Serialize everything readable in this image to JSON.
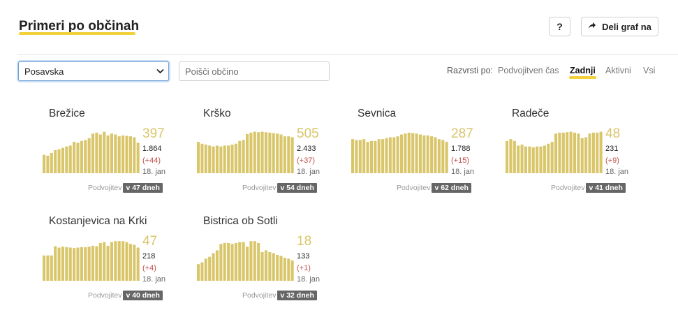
{
  "header": {
    "title": "Primeri po občinah",
    "help_label": "?",
    "share_label": "Deli graf na"
  },
  "filters": {
    "region_selected": "Posavska",
    "search_placeholder": "Poišči občino"
  },
  "sort": {
    "label": "Razvrsti po:",
    "options": [
      "Podvojitven čas",
      "Zadnji",
      "Aktivni",
      "Vsi"
    ],
    "active": "Zadnji"
  },
  "colors": {
    "bar": "#d9c66a",
    "accent_underline": "#f2d23c",
    "delta": "#c0504d",
    "badge": "#666666"
  },
  "municipalities": [
    {
      "name": "Brežice",
      "active": "397",
      "total": "1.864",
      "delta": "(+44)",
      "date": "18. jan",
      "doubling_label": "Podvojitev",
      "doubling_value": "v 47 dneh",
      "bars": [
        40,
        38,
        44,
        50,
        52,
        55,
        58,
        60,
        68,
        66,
        70,
        72,
        76,
        86,
        88,
        84,
        90,
        82,
        86,
        84,
        80,
        82,
        81,
        80,
        78,
        66
      ]
    },
    {
      "name": "Krško",
      "active": "505",
      "total": "2.433",
      "delta": "(+37)",
      "date": "18. jan",
      "doubling_label": "Podvojitev",
      "doubling_value": "v 54 dneh",
      "bars": [
        68,
        64,
        62,
        60,
        58,
        60,
        58,
        60,
        60,
        62,
        64,
        70,
        72,
        85,
        88,
        90,
        89,
        90,
        89,
        88,
        87,
        86,
        84,
        80,
        80,
        78
      ]
    },
    {
      "name": "Sevnica",
      "active": "287",
      "total": "1.788",
      "delta": "(+15)",
      "date": "18. jan",
      "doubling_label": "Podvojitev",
      "doubling_value": "v 62 dneh",
      "bars": [
        74,
        72,
        72,
        74,
        68,
        70,
        70,
        74,
        74,
        76,
        78,
        78,
        80,
        84,
        86,
        88,
        87,
        86,
        84,
        82,
        82,
        80,
        78,
        74,
        72,
        68
      ]
    },
    {
      "name": "Radeče",
      "active": "48",
      "total": "231",
      "delta": "(+9)",
      "date": "18. jan",
      "doubling_label": "Podvojitev",
      "doubling_value": "v 41 dneh",
      "bars": [
        70,
        74,
        70,
        60,
        62,
        58,
        58,
        56,
        58,
        58,
        60,
        64,
        68,
        86,
        88,
        88,
        89,
        90,
        88,
        86,
        76,
        78,
        86,
        88,
        88,
        90
      ]
    },
    {
      "name": "Kostanjevica na Krki",
      "active": "47",
      "total": "218",
      "delta": "(+4)",
      "date": "18. jan",
      "doubling_label": "Podvojitev",
      "doubling_value": "v 40 dneh",
      "bars": [
        55,
        55,
        55,
        75,
        72,
        74,
        73,
        72,
        71,
        72,
        73,
        73,
        74,
        76,
        75,
        82,
        84,
        76,
        84,
        86,
        86,
        86,
        84,
        80,
        78,
        72
      ]
    },
    {
      "name": "Bistrica ob Sotli",
      "active": "18",
      "total": "133",
      "delta": "(+1)",
      "date": "18. jan",
      "doubling_label": "Podvojitev",
      "doubling_value": "v 32 dneh",
      "bars": [
        36,
        40,
        48,
        52,
        60,
        66,
        80,
        82,
        82,
        80,
        82,
        84,
        84,
        74,
        86,
        86,
        82,
        62,
        66,
        62,
        60,
        56,
        54,
        50,
        48,
        44
      ]
    }
  ]
}
